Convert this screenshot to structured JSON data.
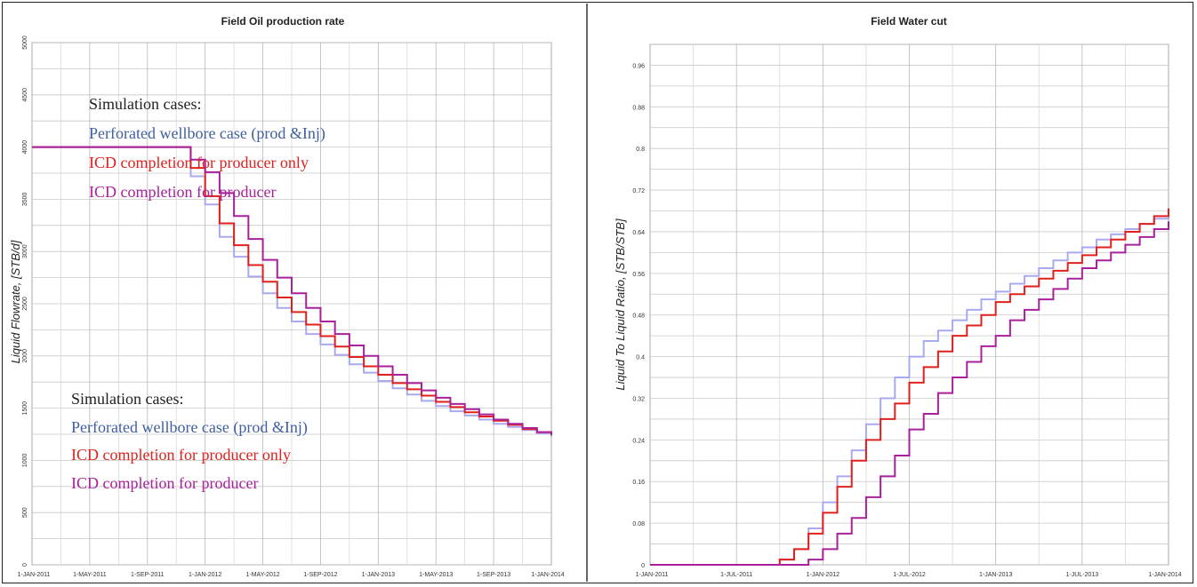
{
  "chart_data": [
    {
      "type": "line",
      "title": "Field Oil production rate",
      "xlabel": "",
      "ylabel": "Liquid Flowrate, [STB/d]",
      "x_ticks": [
        "1-JAN-2011",
        "1-MAY-2011",
        "1-SEP-2011",
        "1-JAN-2012",
        "1-MAY-2012",
        "1-SEP-2012",
        "1-JAN-2013",
        "1-MAY-2013",
        "1-SEP-2013",
        "1-JAN-2014"
      ],
      "y_ticks": [
        "0",
        "500",
        "1000",
        "1500",
        "2000",
        "2500",
        "3000",
        "3500",
        "4000",
        "4500",
        "5000"
      ],
      "ylim": [
        0,
        5000
      ],
      "grid": true,
      "legends": [
        {
          "heading": "Simulation cases:",
          "entries": [
            "Perforated wellbore case (prod &Inj)",
            "ICD completion for producer only",
            "ICD completion for producer"
          ]
        },
        {
          "heading": "Simulation cases:",
          "entries": [
            "Perforated wellbore case (prod &Inj)",
            "ICD completion for producer only",
            "ICD completion for producer"
          ]
        }
      ],
      "series": [
        {
          "name": "Perforated wellbore case (prod &Inj)",
          "color": "#a9a9f0",
          "x": [
            0,
            10,
            11,
            12,
            13,
            14,
            15,
            16,
            17,
            18,
            19,
            20,
            21,
            22,
            23,
            24,
            25,
            26,
            27,
            28,
            29,
            30,
            31,
            32,
            33,
            34,
            35,
            36
          ],
          "y": [
            4000,
            4000,
            3720,
            3450,
            3140,
            2950,
            2760,
            2600,
            2460,
            2330,
            2210,
            2110,
            2010,
            1920,
            1840,
            1760,
            1690,
            1630,
            1570,
            1520,
            1470,
            1430,
            1390,
            1350,
            1320,
            1290,
            1260,
            1230
          ]
        },
        {
          "name": "ICD completion for producer only",
          "color": "#e0201c",
          "x": [
            0,
            10,
            11,
            12,
            13,
            14,
            15,
            16,
            17,
            18,
            19,
            20,
            21,
            22,
            23,
            24,
            25,
            26,
            27,
            28,
            29,
            30,
            31,
            32,
            33,
            34,
            35,
            36
          ],
          "y": [
            4000,
            4000,
            3800,
            3530,
            3270,
            3060,
            2870,
            2710,
            2560,
            2420,
            2300,
            2190,
            2090,
            1990,
            1900,
            1820,
            1740,
            1680,
            1620,
            1560,
            1510,
            1460,
            1420,
            1380,
            1340,
            1300,
            1270,
            1240
          ]
        },
        {
          "name": "ICD completion for producer",
          "color": "#a8209a",
          "x": [
            0,
            10,
            11,
            12,
            13,
            14,
            15,
            16,
            17,
            18,
            19,
            20,
            21,
            22,
            23,
            24,
            25,
            26,
            27,
            28,
            29,
            30,
            31,
            32,
            33,
            34,
            35,
            36
          ],
          "y": [
            4000,
            4000,
            3880,
            3760,
            3560,
            3340,
            3120,
            2920,
            2750,
            2600,
            2460,
            2330,
            2210,
            2100,
            2000,
            1900,
            1820,
            1740,
            1670,
            1600,
            1540,
            1490,
            1440,
            1390,
            1350,
            1310,
            1270,
            1240
          ]
        }
      ]
    },
    {
      "type": "line",
      "title": "Field Water cut",
      "xlabel": "",
      "ylabel": "Liquid To Liquid Ratio, [STB/STB]",
      "x_ticks": [
        "1-JAN-2011",
        "1-JUL-2011",
        "1-JAN-2012",
        "1-JUL-2012",
        "1-JAN-2013",
        "1-JUL-2013",
        "1-JAN-2014"
      ],
      "y_ticks": [
        "0",
        "0.08",
        "0.16",
        "0.24",
        "0.32",
        "0.4",
        "0.48",
        "0.56",
        "0.64",
        "0.72",
        "0.8",
        "0.88",
        "0.96"
      ],
      "ylim": [
        0,
        1.0
      ],
      "grid": true,
      "series": [
        {
          "name": "",
          "color": "#a9a9f0",
          "x": [
            0,
            8,
            9,
            10,
            11,
            12,
            13,
            14,
            15,
            16,
            17,
            18,
            19,
            20,
            21,
            22,
            23,
            24,
            25,
            26,
            27,
            28,
            29,
            30,
            31,
            32,
            33,
            34,
            35,
            36
          ],
          "y": [
            0,
            0,
            0.01,
            0.03,
            0.07,
            0.12,
            0.17,
            0.22,
            0.27,
            0.32,
            0.36,
            0.4,
            0.43,
            0.45,
            0.47,
            0.49,
            0.51,
            0.525,
            0.54,
            0.555,
            0.57,
            0.585,
            0.6,
            0.61,
            0.625,
            0.635,
            0.645,
            0.655,
            0.665,
            0.675
          ]
        },
        {
          "name": "",
          "color": "#e0201c",
          "x": [
            0,
            8,
            9,
            10,
            11,
            12,
            13,
            14,
            15,
            16,
            17,
            18,
            19,
            20,
            21,
            22,
            23,
            24,
            25,
            26,
            27,
            28,
            29,
            30,
            31,
            32,
            33,
            34,
            35,
            36
          ],
          "y": [
            0,
            0,
            0.01,
            0.03,
            0.06,
            0.1,
            0.15,
            0.2,
            0.24,
            0.28,
            0.31,
            0.35,
            0.38,
            0.41,
            0.44,
            0.46,
            0.48,
            0.505,
            0.52,
            0.535,
            0.55,
            0.565,
            0.58,
            0.595,
            0.61,
            0.625,
            0.64,
            0.655,
            0.67,
            0.685
          ]
        },
        {
          "name": "",
          "color": "#a8209a",
          "x": [
            0,
            10,
            11,
            12,
            13,
            14,
            15,
            16,
            17,
            18,
            19,
            20,
            21,
            22,
            23,
            24,
            25,
            26,
            27,
            28,
            29,
            30,
            31,
            32,
            33,
            34,
            35,
            36
          ],
          "y": [
            0,
            0,
            0.01,
            0.03,
            0.06,
            0.09,
            0.13,
            0.17,
            0.21,
            0.26,
            0.29,
            0.33,
            0.36,
            0.39,
            0.42,
            0.44,
            0.47,
            0.49,
            0.51,
            0.53,
            0.55,
            0.57,
            0.585,
            0.6,
            0.615,
            0.63,
            0.645,
            0.66
          ]
        }
      ]
    }
  ]
}
